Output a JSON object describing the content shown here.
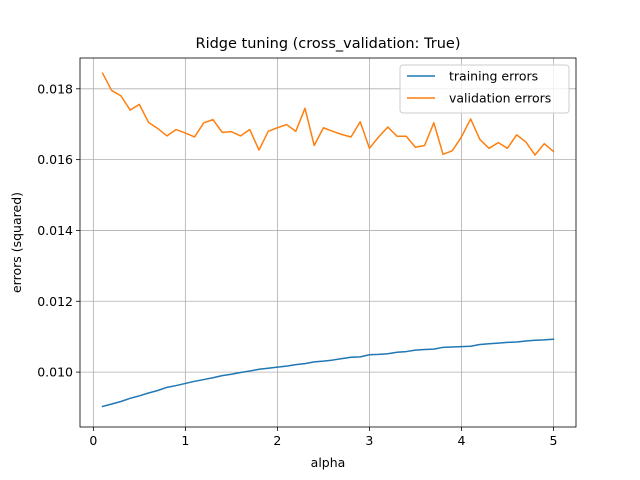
{
  "chart_data": {
    "type": "line",
    "title": "Ridge tuning (cross_validation: True)",
    "xlabel": "alpha",
    "ylabel": "errors (squared)",
    "xlim": [
      -0.145,
      5.245
    ],
    "ylim": [
      0.00845,
      0.01887
    ],
    "xticks": [
      0,
      1,
      2,
      3,
      4,
      5
    ],
    "xtick_labels": [
      "0",
      "1",
      "2",
      "3",
      "4",
      "5"
    ],
    "yticks": [
      0.01,
      0.012,
      0.014,
      0.016,
      0.018
    ],
    "ytick_labels": [
      "0.010",
      "0.012",
      "0.014",
      "0.016",
      "0.018"
    ],
    "grid": true,
    "legend_position": "top-right",
    "x": [
      0.1,
      0.2,
      0.3,
      0.4,
      0.5,
      0.6,
      0.7,
      0.8,
      0.9,
      1.0,
      1.1,
      1.2,
      1.3,
      1.4,
      1.5,
      1.6,
      1.7,
      1.8,
      1.9,
      2.0,
      2.1,
      2.2,
      2.3,
      2.4,
      2.5,
      2.6,
      2.7,
      2.8,
      2.9,
      3.0,
      3.1,
      3.2,
      3.3,
      3.4,
      3.5,
      3.6,
      3.7,
      3.8,
      3.9,
      4.0,
      4.1,
      4.2,
      4.3,
      4.4,
      4.5,
      4.6,
      4.7,
      4.8,
      4.9,
      5.0
    ],
    "series": [
      {
        "name": "training errors",
        "color": "#1f77b4",
        "values": [
          0.00903,
          0.0091,
          0.00917,
          0.00926,
          0.00933,
          0.00941,
          0.00948,
          0.00957,
          0.00962,
          0.00968,
          0.00974,
          0.00979,
          0.00984,
          0.0099,
          0.00994,
          0.00999,
          0.01003,
          0.01008,
          0.01011,
          0.01014,
          0.01017,
          0.01021,
          0.01024,
          0.01029,
          0.01031,
          0.01034,
          0.01038,
          0.01042,
          0.01043,
          0.01049,
          0.0105,
          0.01052,
          0.01056,
          0.01058,
          0.01062,
          0.01064,
          0.01065,
          0.0107,
          0.01071,
          0.01072,
          0.01073,
          0.01078,
          0.0108,
          0.01082,
          0.01084,
          0.01085,
          0.01088,
          0.0109,
          0.01091,
          0.01093
        ]
      },
      {
        "name": "validation errors",
        "color": "#ff7f0e",
        "values": [
          0.01844,
          0.01795,
          0.0178,
          0.0174,
          0.01756,
          0.01705,
          0.01688,
          0.01667,
          0.01685,
          0.01675,
          0.01664,
          0.01704,
          0.01713,
          0.01677,
          0.01679,
          0.01667,
          0.01685,
          0.01627,
          0.0168,
          0.0169,
          0.01699,
          0.0168,
          0.01745,
          0.0164,
          0.0169,
          0.0168,
          0.01671,
          0.01664,
          0.01707,
          0.01632,
          0.01664,
          0.01692,
          0.01666,
          0.01666,
          0.01635,
          0.0164,
          0.01704,
          0.01615,
          0.01625,
          0.01664,
          0.01715,
          0.01657,
          0.01632,
          0.01648,
          0.01632,
          0.0167,
          0.0165,
          0.01613,
          0.01645,
          0.01623
        ]
      }
    ]
  }
}
